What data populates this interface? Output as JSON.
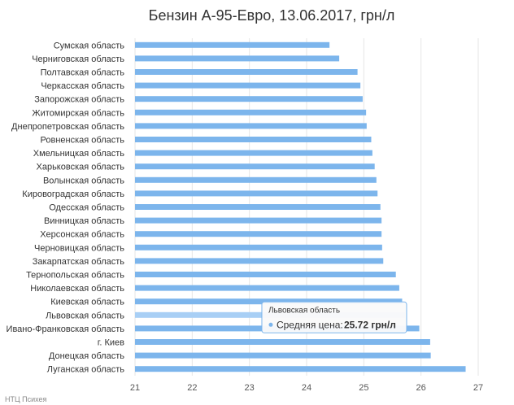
{
  "chart_data": {
    "type": "bar",
    "orientation": "horizontal",
    "title": "Бензин А-95-Евро, 13.06.2017, грн/л",
    "categories": [
      "Сумская область",
      "Черниговская область",
      "Полтавская область",
      "Черкасская область",
      "Запорожская область",
      "Житомирская область",
      "Днепропетровская область",
      "Ровненская область",
      "Хмельницкая область",
      "Харьковская область",
      "Волынская область",
      "Кировоградская область",
      "Одесская область",
      "Винницкая область",
      "Херсонская область",
      "Черновицкая область",
      "Закарпатская область",
      "Тернопольская область",
      "Николаевская область",
      "Киевская область",
      "Львовская область",
      "Ивано-Франковская область",
      "г. Киев",
      "Донецкая область",
      "Луганская область"
    ],
    "series": [
      {
        "values": [
          24.4,
          24.57,
          24.89,
          24.94,
          24.98,
          25.04,
          25.05,
          25.13,
          25.15,
          25.19,
          25.22,
          25.24,
          25.29,
          25.31,
          25.31,
          25.32,
          25.34,
          25.56,
          25.62,
          25.67,
          25.72,
          25.97,
          26.16,
          26.17,
          26.78
        ]
      }
    ],
    "xlim": [
      21,
      27
    ],
    "xticks": [
      "21",
      "22",
      "23",
      "24",
      "25",
      "26",
      "27"
    ],
    "grid": true,
    "legend": "none",
    "bar_color": "#7cb5ec",
    "highlight_color": "#a8cff5",
    "highlight_index": 20,
    "tooltip": {
      "title": "Львовская область",
      "label": "Средняя цена:",
      "value": "25.72 грн/л"
    },
    "credit": "НТЦ Психея"
  }
}
